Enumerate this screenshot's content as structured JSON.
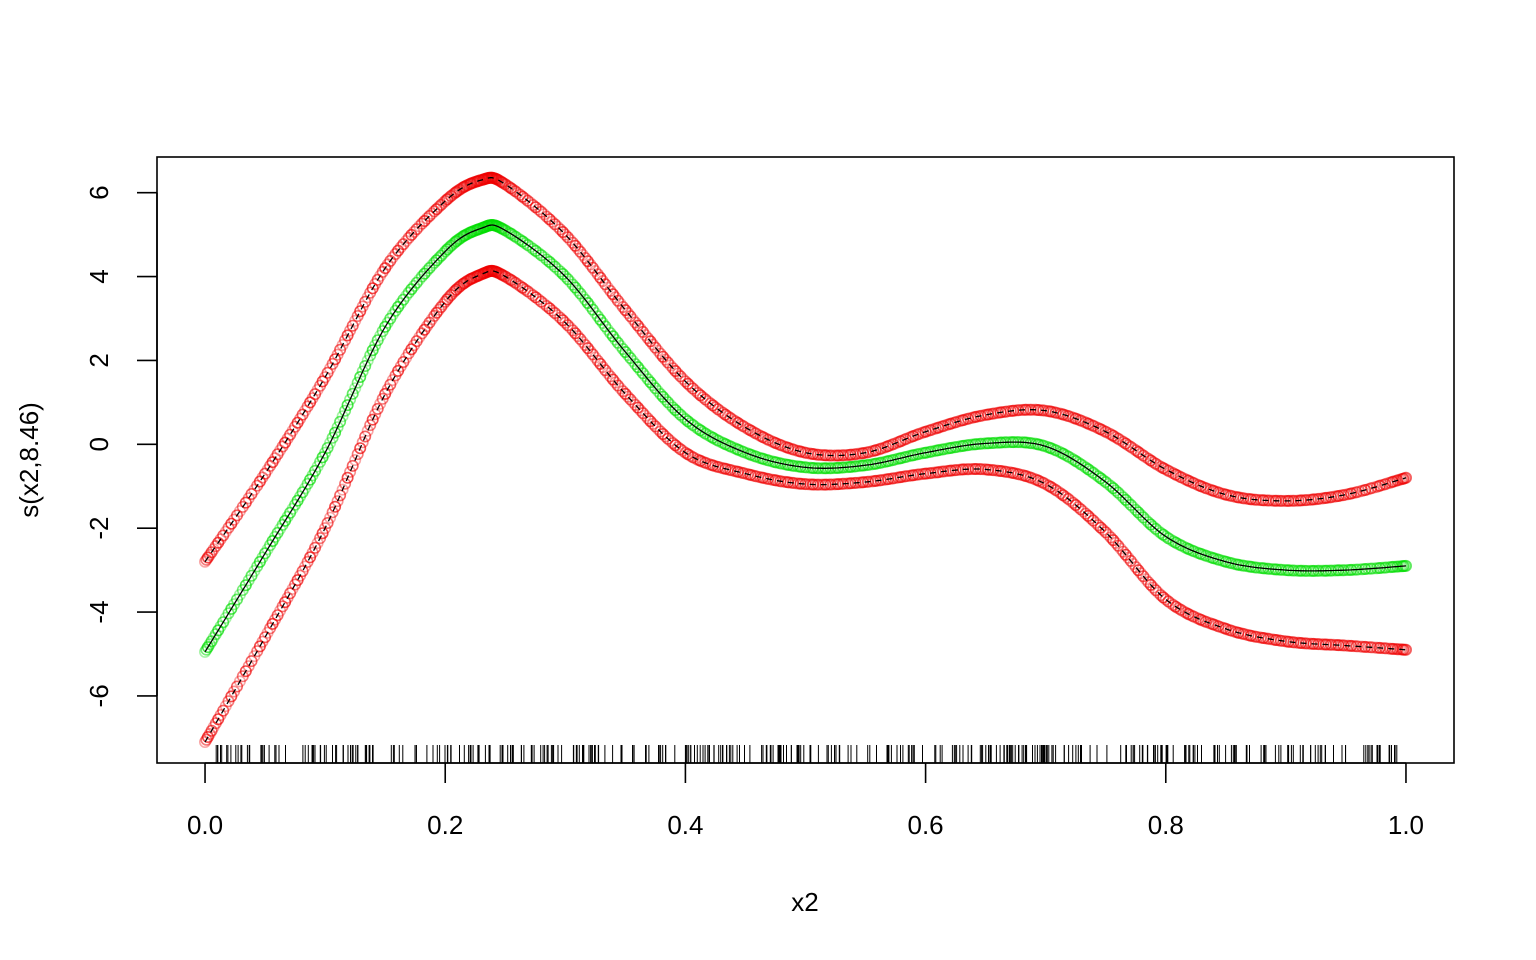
{
  "chart_data": {
    "type": "line",
    "title": "",
    "xlabel": "x2",
    "ylabel": "s(x2,8.46)",
    "xlim": [
      -0.04,
      1.04
    ],
    "ylim": [
      -7.6,
      6.85
    ],
    "x_ticks": [
      "0.0",
      "0.2",
      "0.4",
      "0.6",
      "0.8",
      "1.0"
    ],
    "x_tick_values": [
      0.0,
      0.2,
      0.4,
      0.6,
      0.8,
      1.0
    ],
    "y_ticks": [
      "-6",
      "-4",
      "-2",
      "0",
      "2",
      "4",
      "6"
    ],
    "y_tick_values": [
      -6,
      -4,
      -2,
      0,
      2,
      4,
      6
    ],
    "grid": false,
    "rug": true,
    "colors": {
      "estimate": "#000000",
      "estimate_points": "#00dd00",
      "band_points": "#ee0000",
      "frame": "#000000"
    },
    "series": [
      {
        "role": "estimate",
        "line": "solid",
        "x": [
          0.0,
          0.05,
          0.1,
          0.15,
          0.2,
          0.23,
          0.25,
          0.3,
          0.35,
          0.4,
          0.45,
          0.5,
          0.55,
          0.6,
          0.65,
          0.7,
          0.75,
          0.8,
          0.85,
          0.9,
          0.95,
          1.0
        ],
        "y": [
          -4.95,
          -2.6,
          -0.2,
          2.8,
          4.6,
          5.15,
          5.1,
          4.0,
          2.2,
          0.6,
          -0.2,
          -0.55,
          -0.5,
          -0.2,
          0.02,
          -0.05,
          -0.9,
          -2.2,
          -2.8,
          -3.0,
          -3.0,
          -2.9
        ]
      },
      {
        "role": "upper-band",
        "line": "dashed",
        "x": [
          0.0,
          0.05,
          0.1,
          0.15,
          0.2,
          0.23,
          0.25,
          0.3,
          0.35,
          0.4,
          0.45,
          0.5,
          0.55,
          0.6,
          0.65,
          0.7,
          0.75,
          0.8,
          0.85,
          0.9,
          0.95,
          1.0
        ],
        "y": [
          -2.8,
          -0.7,
          1.6,
          4.2,
          5.8,
          6.3,
          6.2,
          5.0,
          3.2,
          1.5,
          0.4,
          -0.2,
          -0.2,
          0.3,
          0.7,
          0.8,
          0.3,
          -0.6,
          -1.2,
          -1.35,
          -1.2,
          -0.8
        ]
      },
      {
        "role": "lower-band",
        "line": "dashed",
        "x": [
          0.0,
          0.05,
          0.1,
          0.15,
          0.2,
          0.23,
          0.25,
          0.3,
          0.35,
          0.4,
          0.45,
          0.5,
          0.55,
          0.6,
          0.65,
          0.7,
          0.75,
          0.8,
          0.85,
          0.9,
          0.95,
          1.0
        ],
        "y": [
          -7.1,
          -4.6,
          -2.0,
          1.2,
          3.4,
          4.05,
          4.0,
          2.9,
          1.2,
          -0.2,
          -0.7,
          -0.95,
          -0.9,
          -0.7,
          -0.6,
          -0.95,
          -2.1,
          -3.7,
          -4.4,
          -4.7,
          -4.8,
          -4.9
        ]
      }
    ]
  }
}
